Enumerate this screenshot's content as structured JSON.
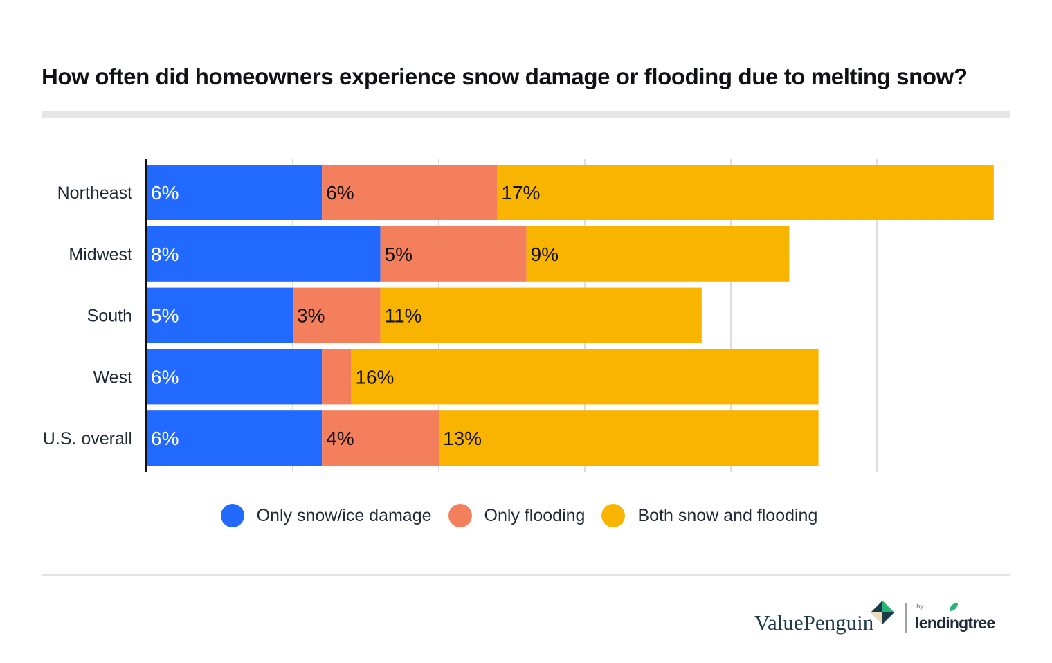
{
  "title": "How often did homeowners experience snow damage or flooding due to melting snow?",
  "colors": {
    "snow": "#2169ff",
    "flood": "#f47f5c",
    "both": "#f9b400"
  },
  "chart_data": {
    "type": "bar",
    "orientation": "horizontal",
    "stacked": true,
    "title": "How often did homeowners experience snow damage or flooding due to melting snow?",
    "categories": [
      "Northeast",
      "Midwest",
      "South",
      "West",
      "U.S. overall"
    ],
    "series": [
      {
        "name": "Only snow/ice damage",
        "key": "snow",
        "values": [
          6,
          8,
          5,
          6,
          6
        ],
        "labels": [
          "6%",
          "8%",
          "5%",
          "6%",
          "6%"
        ]
      },
      {
        "name": "Only flooding",
        "key": "flood",
        "values": [
          6,
          5,
          3,
          1,
          4
        ],
        "labels": [
          "6%",
          "5%",
          "3%",
          "",
          "4%"
        ]
      },
      {
        "name": "Both snow and flooding",
        "key": "both",
        "values": [
          17,
          9,
          11,
          16,
          13
        ],
        "labels": [
          "17%",
          "9%",
          "11%",
          "16%",
          "13%"
        ]
      }
    ],
    "xlim": [
      0,
      30
    ],
    "grid": true,
    "legend_position": "bottom"
  },
  "legend": [
    {
      "label": "Only snow/ice damage",
      "key": "snow"
    },
    {
      "label": "Only flooding",
      "key": "flood"
    },
    {
      "label": "Both snow and flooding",
      "key": "both"
    }
  ],
  "brand": {
    "name": "ValuePenguin",
    "by": "by",
    "partner": "lendingtree"
  }
}
